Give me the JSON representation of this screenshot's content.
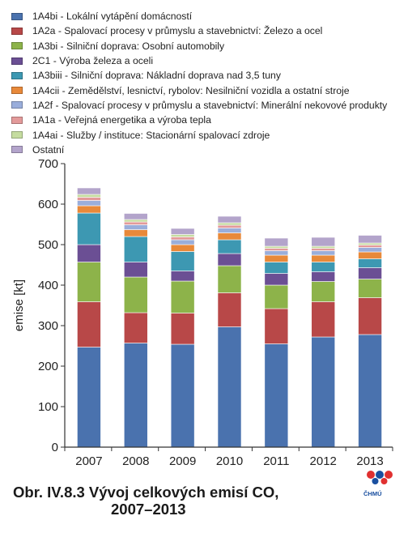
{
  "chart_data": {
    "type": "bar",
    "stacked": true,
    "categories": [
      "2007",
      "2008",
      "2009",
      "2010",
      "2011",
      "2012",
      "2013"
    ],
    "ylabel": "emise [kt]",
    "ylim": [
      0,
      700
    ],
    "yticks": [
      0,
      100,
      200,
      300,
      400,
      500,
      600,
      700
    ],
    "grid": false,
    "legend_position": "top",
    "series": [
      {
        "name": "1A4bi - Lokální vytápění domácností",
        "color": "#4a72ae",
        "values": [
          247,
          257,
          254,
          297,
          255,
          272,
          278
        ]
      },
      {
        "name": "1A2a - Spalovací procesy v průmyslu a stavebnictví: Železo a ocel",
        "color": "#b84848",
        "values": [
          112,
          75,
          77,
          84,
          87,
          87,
          91
        ]
      },
      {
        "name": "1A3bi - Silniční doprava: Osobní automobily",
        "color": "#8db34a",
        "values": [
          98,
          88,
          79,
          67,
          58,
          50,
          46
        ]
      },
      {
        "name": "2C1 - Výroba železa a oceli",
        "color": "#6b4f94",
        "values": [
          43,
          37,
          25,
          30,
          29,
          24,
          28
        ]
      },
      {
        "name": "1A3biii - Silniční doprava: Nákladní doprava nad 3,5 tuny",
        "color": "#3d98b2",
        "values": [
          78,
          63,
          48,
          34,
          28,
          24,
          22
        ]
      },
      {
        "name": "1A4cii - Zemědělství, lesnictví, rybolov: Nesilniční vozidla a ostatní stroje",
        "color": "#e8893a",
        "values": [
          18,
          17,
          17,
          17,
          17,
          17,
          17
        ]
      },
      {
        "name": "1A2f - Spalovací procesy v průmyslu a stavebnictví: Minerální nekovové produkty",
        "color": "#9aaedb",
        "values": [
          13,
          12,
          12,
          12,
          11,
          11,
          11
        ]
      },
      {
        "name": "1A1a - Veřejná energetika a výroba tepla",
        "color": "#e39a9a",
        "values": [
          8,
          7,
          7,
          7,
          6,
          6,
          6
        ]
      },
      {
        "name": "1A4ai - Služby / instituce: Stacionární spalovací zdroje",
        "color": "#c5dc9f",
        "values": [
          7,
          6,
          6,
          6,
          5,
          5,
          5
        ]
      },
      {
        "name": "Ostatní",
        "color": "#b3a4cb",
        "values": [
          16,
          15,
          15,
          16,
          20,
          22,
          19
        ]
      }
    ]
  },
  "caption": {
    "line1": "Obr. IV.8.3  Vývoj celkových emisí CO,",
    "line2": "2007–2013"
  },
  "logo": {
    "text": "ČHMÚ",
    "colors": [
      "#e03030",
      "#1a4fa0"
    ]
  }
}
